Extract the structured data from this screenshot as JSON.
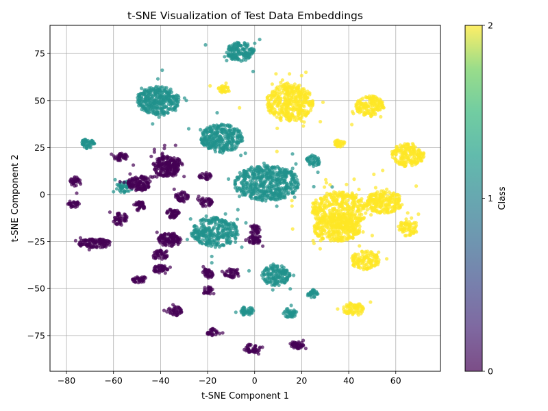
{
  "chart_data": {
    "type": "scatter",
    "title": "t-SNE Visualization of Test Data Embeddings",
    "xlabel": "t-SNE Component 1",
    "ylabel": "t-SNE Component 2",
    "xlim": [
      -87,
      79
    ],
    "ylim": [
      -94,
      90
    ],
    "xticks": [
      -80,
      -60,
      -40,
      -20,
      0,
      20,
      40,
      60
    ],
    "xtick_labels": [
      "−80",
      "−60",
      "−40",
      "−20",
      "0",
      "20",
      "40",
      "60"
    ],
    "yticks": [
      -75,
      -50,
      -25,
      0,
      25,
      50,
      75
    ],
    "ytick_labels": [
      "−75",
      "−50",
      "−25",
      "0",
      "25",
      "50",
      "75"
    ],
    "grid": true,
    "colorbar": {
      "label": "Class",
      "ticks": [
        0,
        1,
        2
      ],
      "tick_labels": [
        "0",
        "1",
        "2"
      ],
      "colormap": "viridis",
      "alpha": 0.7
    },
    "class_colors": {
      "0": "#440154",
      "1": "#21918c",
      "2": "#fde725"
    },
    "point_alpha": 0.7,
    "clusters": [
      {
        "class": 1,
        "cx": -6,
        "cy": 76,
        "rx": 6,
        "ry": 5,
        "n": 150
      },
      {
        "class": 1,
        "cx": -41,
        "cy": 50,
        "rx": 9,
        "ry": 7.5,
        "n": 320
      },
      {
        "class": 1,
        "cx": -14,
        "cy": 30,
        "rx": 9,
        "ry": 7.5,
        "n": 300
      },
      {
        "class": 1,
        "cx": -71,
        "cy": 27,
        "rx": 3,
        "ry": 2.5,
        "n": 45
      },
      {
        "class": 1,
        "cx": -55,
        "cy": 4,
        "rx": 4,
        "ry": 3,
        "n": 50
      },
      {
        "class": 1,
        "cx": 5,
        "cy": 6,
        "rx": 14,
        "ry": 9.5,
        "n": 500
      },
      {
        "class": 1,
        "cx": 25,
        "cy": 18,
        "rx": 3,
        "ry": 3,
        "n": 40
      },
      {
        "class": 1,
        "cx": -17,
        "cy": -20,
        "rx": 10,
        "ry": 8,
        "n": 300
      },
      {
        "class": 1,
        "cx": 9,
        "cy": -43,
        "rx": 6,
        "ry": 5.5,
        "n": 150
      },
      {
        "class": 1,
        "cx": -3,
        "cy": -62,
        "rx": 3,
        "ry": 2.5,
        "n": 40
      },
      {
        "class": 1,
        "cx": 15,
        "cy": -63,
        "rx": 3,
        "ry": 2.5,
        "n": 40
      },
      {
        "class": 1,
        "cx": 25,
        "cy": -53,
        "rx": 2.5,
        "ry": 2.5,
        "n": 30
      },
      {
        "class": 2,
        "cx": 15,
        "cy": 49,
        "rx": 10,
        "ry": 10,
        "n": 420
      },
      {
        "class": 2,
        "cx": -13,
        "cy": 56,
        "rx": 2.5,
        "ry": 2,
        "n": 30
      },
      {
        "class": 2,
        "cx": 49,
        "cy": 47,
        "rx": 6,
        "ry": 5.5,
        "n": 150
      },
      {
        "class": 2,
        "cx": 36,
        "cy": 27,
        "rx": 2.5,
        "ry": 2,
        "n": 30
      },
      {
        "class": 2,
        "cx": 65,
        "cy": 21,
        "rx": 7,
        "ry": 6,
        "n": 180
      },
      {
        "class": 2,
        "cx": 36,
        "cy": -8,
        "rx": 12,
        "ry": 10,
        "n": 420
      },
      {
        "class": 2,
        "cx": 55,
        "cy": -4,
        "rx": 8,
        "ry": 6,
        "n": 220
      },
      {
        "class": 2,
        "cx": 35,
        "cy": -18,
        "rx": 10,
        "ry": 7,
        "n": 300
      },
      {
        "class": 2,
        "cx": 65,
        "cy": -18,
        "rx": 4.5,
        "ry": 4,
        "n": 70
      },
      {
        "class": 2,
        "cx": 47,
        "cy": -35,
        "rx": 6,
        "ry": 5,
        "n": 130
      },
      {
        "class": 2,
        "cx": 42,
        "cy": -61,
        "rx": 4.5,
        "ry": 3.5,
        "n": 70
      },
      {
        "class": 0,
        "cx": -37,
        "cy": 15,
        "rx": 6.5,
        "ry": 5.5,
        "n": 220
      },
      {
        "class": 0,
        "cx": -57,
        "cy": 20,
        "rx": 3,
        "ry": 2,
        "n": 40
      },
      {
        "class": 0,
        "cx": -76,
        "cy": 7,
        "rx": 2.5,
        "ry": 2.5,
        "n": 35
      },
      {
        "class": 0,
        "cx": -49,
        "cy": 6,
        "rx": 5,
        "ry": 4,
        "n": 130
      },
      {
        "class": 0,
        "cx": -21,
        "cy": 10,
        "rx": 2.5,
        "ry": 2,
        "n": 30
      },
      {
        "class": 0,
        "cx": -31,
        "cy": -1,
        "rx": 3,
        "ry": 2.5,
        "n": 45
      },
      {
        "class": 0,
        "cx": -77,
        "cy": -5,
        "rx": 2.5,
        "ry": 2,
        "n": 30
      },
      {
        "class": 0,
        "cx": -49,
        "cy": -6,
        "rx": 2.5,
        "ry": 2.5,
        "n": 40
      },
      {
        "class": 0,
        "cx": -21,
        "cy": -4,
        "rx": 3,
        "ry": 2.5,
        "n": 40
      },
      {
        "class": 0,
        "cx": -35,
        "cy": -10,
        "rx": 3,
        "ry": 2.5,
        "n": 45
      },
      {
        "class": 0,
        "cx": -57,
        "cy": -13,
        "rx": 3,
        "ry": 3.5,
        "n": 50
      },
      {
        "class": 0,
        "cx": 0,
        "cy": -19,
        "rx": 2.5,
        "ry": 3,
        "n": 35
      },
      {
        "class": 0,
        "cx": -68,
        "cy": -26,
        "rx": 7,
        "ry": 2.5,
        "n": 110
      },
      {
        "class": 0,
        "cx": -36,
        "cy": -24,
        "rx": 5,
        "ry": 3.5,
        "n": 110
      },
      {
        "class": 0,
        "cx": 0,
        "cy": -24,
        "rx": 3,
        "ry": 2.5,
        "n": 45
      },
      {
        "class": 0,
        "cx": -40,
        "cy": -32,
        "rx": 3,
        "ry": 2.5,
        "n": 45
      },
      {
        "class": 0,
        "cx": -40,
        "cy": -40,
        "rx": 3,
        "ry": 2.5,
        "n": 45
      },
      {
        "class": 0,
        "cx": -10,
        "cy": -42,
        "rx": 3,
        "ry": 2.5,
        "n": 45
      },
      {
        "class": 0,
        "cx": -20,
        "cy": -42,
        "rx": 2.5,
        "ry": 2.5,
        "n": 40
      },
      {
        "class": 0,
        "cx": -49,
        "cy": -45,
        "rx": 3,
        "ry": 2,
        "n": 40
      },
      {
        "class": 0,
        "cx": -20,
        "cy": -51,
        "rx": 2.5,
        "ry": 2,
        "n": 30
      },
      {
        "class": 0,
        "cx": -34,
        "cy": -62,
        "rx": 3,
        "ry": 2.5,
        "n": 40
      },
      {
        "class": 0,
        "cx": -18,
        "cy": -73,
        "rx": 2.5,
        "ry": 2,
        "n": 30
      },
      {
        "class": 0,
        "cx": -1,
        "cy": -82,
        "rx": 3.5,
        "ry": 2.5,
        "n": 45
      },
      {
        "class": 0,
        "cx": 18,
        "cy": -80,
        "rx": 3,
        "ry": 2,
        "n": 40
      }
    ]
  }
}
